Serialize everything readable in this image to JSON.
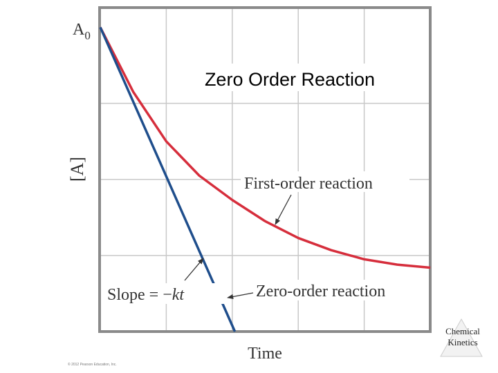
{
  "chart_data": {
    "type": "line",
    "title": "Zero Order Reaction",
    "x_label": "Time",
    "y_label": "[A]",
    "y_origin_label": {
      "text": "A",
      "subscript": "0"
    },
    "slope_label": {
      "text": "Slope = −",
      "italic": "kt"
    },
    "series": [
      {
        "name": "First-order reaction",
        "color": "#d62e3c",
        "x": [
          0,
          0.5,
          1,
          1.5,
          2,
          2.5,
          3,
          3.5,
          4,
          4.5,
          5
        ],
        "values": [
          4,
          3.15,
          2.5,
          2.05,
          1.73,
          1.45,
          1.23,
          1.07,
          0.95,
          0.88,
          0.84
        ]
      },
      {
        "name": "Zero-order reaction",
        "color": "#1f4e8c",
        "x": [
          0,
          1,
          2.04
        ],
        "values": [
          4,
          2.04,
          0
        ]
      }
    ],
    "xlim": [
      0,
      5
    ],
    "ylim": [
      0,
      4.25
    ],
    "xgrid": [
      1,
      2,
      3,
      4
    ],
    "ygrid": [
      1,
      2,
      3
    ],
    "grid": true,
    "copyright": "© 2012 Pearson Education, Inc.",
    "logo": [
      "Chemical",
      "Kinetics"
    ]
  }
}
